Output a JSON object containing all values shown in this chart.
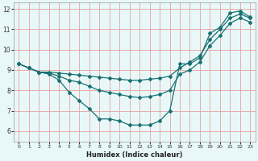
{
  "xlabel": "Humidex (Indice chaleur)",
  "bg_color": "#e8f8f8",
  "grid_color": "#e8a0a0",
  "line_color": "#1a7070",
  "xlim": [
    -0.5,
    23.5
  ],
  "ylim": [
    5.5,
    12.3
  ],
  "xticks": [
    0,
    1,
    2,
    3,
    4,
    5,
    6,
    7,
    8,
    9,
    10,
    11,
    12,
    13,
    14,
    15,
    16,
    17,
    18,
    19,
    20,
    21,
    22,
    23
  ],
  "yticks": [
    6,
    7,
    8,
    9,
    10,
    11,
    12
  ],
  "line1_x": [
    0,
    1,
    2,
    3,
    4,
    5,
    6,
    7,
    8,
    9,
    10,
    11,
    12,
    13,
    14,
    15,
    16,
    17,
    18,
    19,
    20,
    21,
    22,
    23
  ],
  "line1_y": [
    9.3,
    9.1,
    8.9,
    8.8,
    8.5,
    7.9,
    7.5,
    7.1,
    6.6,
    6.6,
    6.5,
    6.3,
    6.3,
    6.3,
    6.5,
    7.0,
    9.3,
    9.3,
    9.6,
    10.8,
    11.1,
    11.8,
    11.9,
    11.6
  ],
  "line2_x": [
    0,
    1,
    2,
    3,
    4,
    5,
    6,
    7,
    8,
    9,
    10,
    11,
    12,
    13,
    14,
    15,
    16,
    17,
    18,
    19,
    20,
    21,
    22,
    23
  ],
  "line2_y": [
    9.3,
    9.1,
    8.9,
    8.85,
    8.7,
    8.5,
    8.4,
    8.2,
    8.0,
    7.9,
    7.8,
    7.7,
    7.65,
    7.7,
    7.8,
    8.0,
    8.8,
    9.0,
    9.4,
    10.2,
    10.7,
    11.3,
    11.55,
    11.35
  ],
  "line3_x": [
    0,
    1,
    2,
    3,
    4,
    5,
    6,
    7,
    8,
    9,
    10,
    11,
    12,
    13,
    14,
    15,
    16,
    17,
    18,
    19,
    20,
    21,
    22,
    23
  ],
  "line3_y": [
    9.3,
    9.1,
    8.9,
    8.9,
    8.85,
    8.8,
    8.75,
    8.7,
    8.65,
    8.6,
    8.55,
    8.5,
    8.5,
    8.55,
    8.6,
    8.7,
    9.1,
    9.4,
    9.7,
    10.5,
    11.0,
    11.55,
    11.75,
    11.55
  ],
  "markersize": 2.0,
  "linewidth": 0.9
}
